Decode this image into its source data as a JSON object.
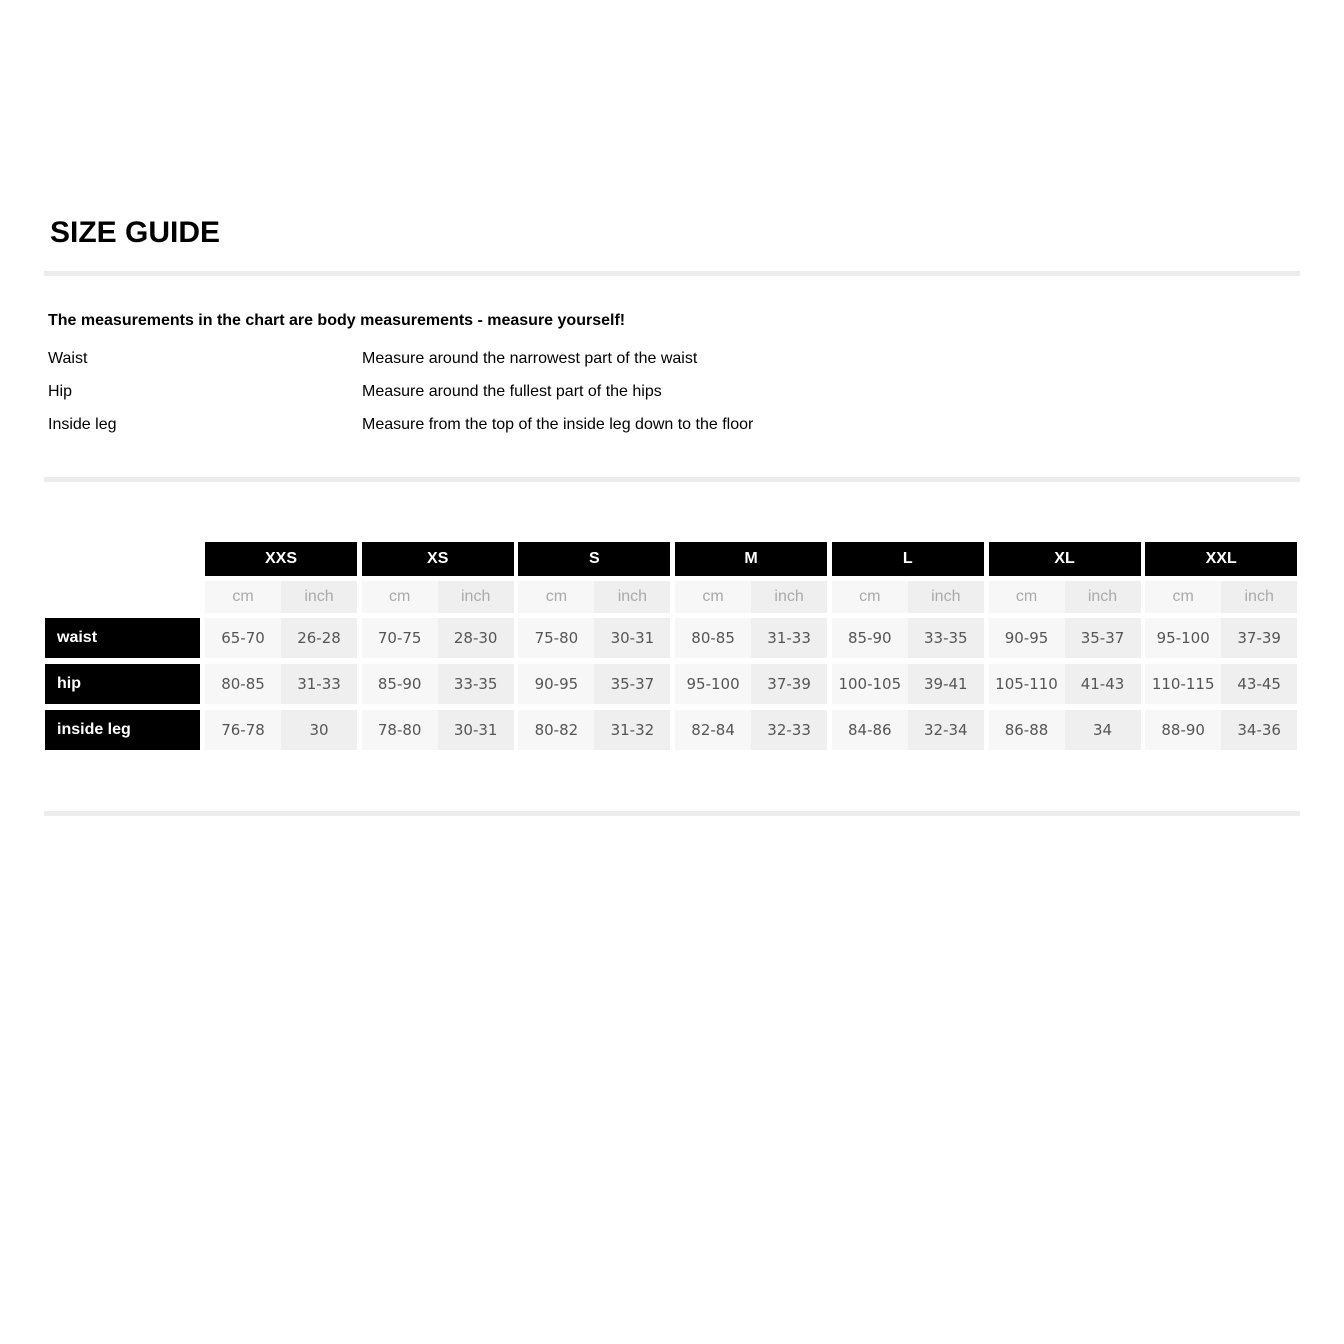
{
  "title": "SIZE GUIDE",
  "intro": "The measurements in the chart are body measurements - measure yourself!",
  "measurements": [
    {
      "label": "Waist",
      "description": "Measure around the narrowest part of the waist"
    },
    {
      "label": "Hip",
      "description": "Measure around the fullest part of the hips"
    },
    {
      "label": "Inside leg",
      "description": "Measure from the top of the inside leg down to the floor"
    }
  ],
  "table": {
    "units": [
      "cm",
      "inch"
    ],
    "sizes": [
      "XXS",
      "XS",
      "S",
      "M",
      "L",
      "XL",
      "XXL"
    ],
    "rows": [
      {
        "label": "waist",
        "values": [
          [
            "65-70",
            "26-28"
          ],
          [
            "70-75",
            "28-30"
          ],
          [
            "75-80",
            "30-31"
          ],
          [
            "80-85",
            "31-33"
          ],
          [
            "85-90",
            "33-35"
          ],
          [
            "90-95",
            "35-37"
          ],
          [
            "95-100",
            "37-39"
          ]
        ]
      },
      {
        "label": "hip",
        "values": [
          [
            "80-85",
            "31-33"
          ],
          [
            "85-90",
            "33-35"
          ],
          [
            "90-95",
            "35-37"
          ],
          [
            "95-100",
            "37-39"
          ],
          [
            "100-105",
            "39-41"
          ],
          [
            "105-110",
            "41-43"
          ],
          [
            "110-115",
            "43-45"
          ]
        ]
      },
      {
        "label": "inside leg",
        "values": [
          [
            "76-78",
            "30"
          ],
          [
            "78-80",
            "30-31"
          ],
          [
            "80-82",
            "31-32"
          ],
          [
            "82-84",
            "32-33"
          ],
          [
            "84-86",
            "32-34"
          ],
          [
            "86-88",
            "34"
          ],
          [
            "88-90",
            "34-36"
          ]
        ]
      }
    ]
  }
}
